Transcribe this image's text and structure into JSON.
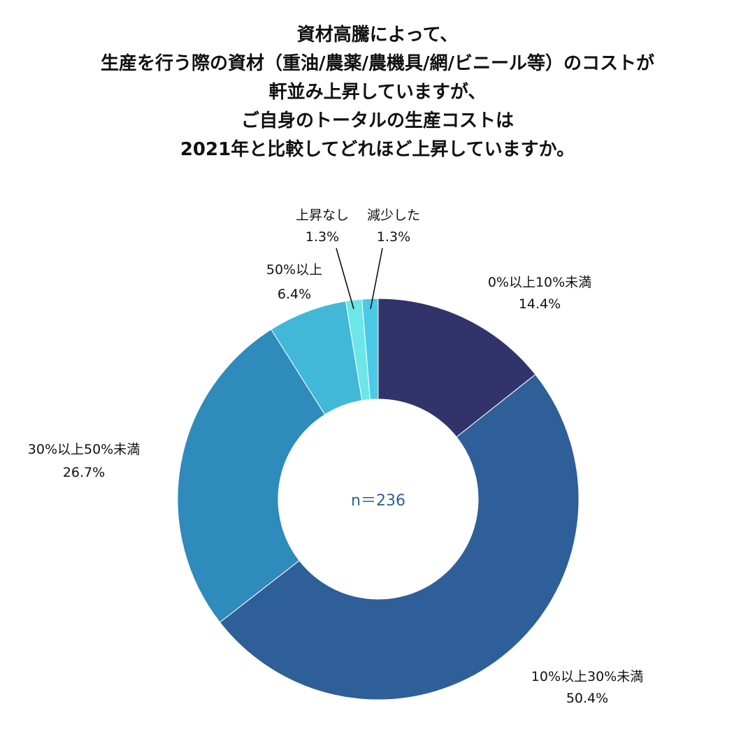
{
  "title_lines": [
    "資材高騰によって、",
    "生産を行う際の資材（重油/農薬/農機具/網/ビニール等）のコストが",
    "軒並み上昇していますが、",
    "ご自身のトータルの生産コストは",
    "2021年と比較してどれほど上昇していますか。"
  ],
  "chart_data": {
    "type": "pie",
    "style": "donut",
    "center_text": "n＝236",
    "center_text_color": "#2f5f99",
    "slices": [
      {
        "label": "0%以上10%未満",
        "value": 14.4,
        "value_label": "14.4%",
        "color": "#32336b"
      },
      {
        "label": "10%以上30%未満",
        "value": 50.4,
        "value_label": "50.4%",
        "color": "#2f5f99"
      },
      {
        "label": "30%以上50%未満",
        "value": 26.7,
        "value_label": "26.7%",
        "color": "#2e8bbb"
      },
      {
        "label": "50%以上",
        "value": 6.4,
        "value_label": "6.4%",
        "color": "#42b8d8"
      },
      {
        "label": "上昇なし",
        "value": 1.3,
        "value_label": "1.3%",
        "color": "#6ce6e8"
      },
      {
        "label": "減少した",
        "value": 1.3,
        "value_label": "1.3%",
        "color": "#4cc9e6"
      }
    ]
  }
}
